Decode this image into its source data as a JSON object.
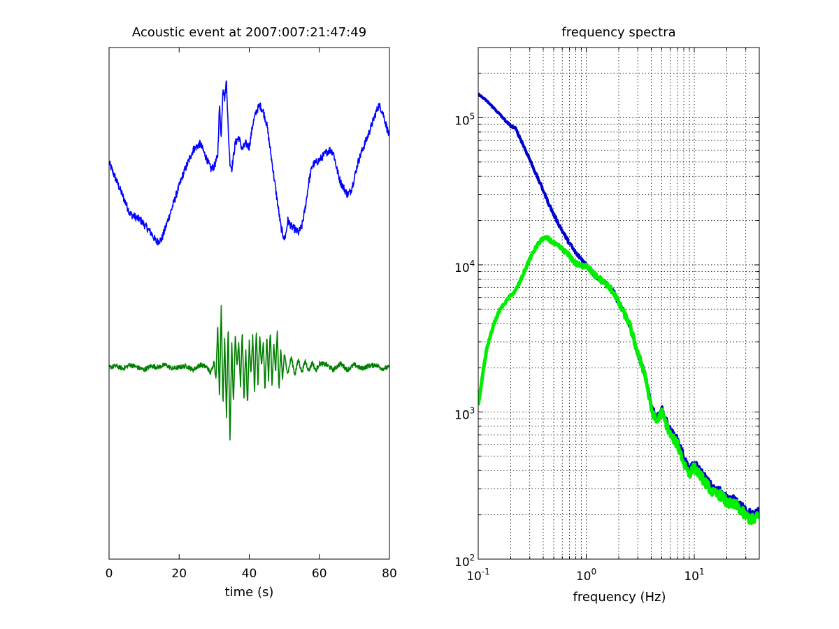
{
  "chart_data": [
    {
      "type": "line",
      "title": "Acoustic event at 2007:007:21:47:49",
      "xlabel": "time (s)",
      "ylabel": "",
      "xlim": [
        0,
        80
      ],
      "xticks": [
        0,
        20,
        40,
        60,
        80
      ],
      "ylim": [
        -1.5,
        2.5
      ],
      "yticks_shown": false,
      "grid": false,
      "series": [
        {
          "color": "#0000ff",
          "noise": 0.03,
          "x": [
            0,
            3,
            6,
            9,
            12,
            13.5,
            15,
            18,
            21,
            24,
            26,
            28,
            29,
            30,
            31,
            31.5,
            32,
            32.5,
            33,
            33.5,
            34,
            34.5,
            35,
            35.5,
            36,
            37,
            38,
            39,
            40,
            41,
            42,
            43,
            44,
            45,
            46,
            47,
            48,
            49,
            50,
            50.5,
            51,
            52,
            53,
            54,
            55,
            56,
            57,
            58,
            59,
            60,
            61,
            62,
            63,
            64,
            65,
            66,
            67,
            68,
            69,
            70,
            71,
            72,
            73,
            74,
            75,
            76,
            77,
            78,
            79,
            80
          ],
          "y": [
            1.6,
            1.4,
            1.2,
            1.15,
            1.05,
            0.98,
            1.0,
            1.25,
            1.5,
            1.7,
            1.75,
            1.62,
            1.55,
            1.57,
            1.65,
            2.05,
            1.8,
            2.2,
            2.1,
            2.25,
            1.85,
            1.6,
            1.55,
            1.65,
            1.75,
            1.8,
            1.7,
            1.75,
            1.72,
            1.9,
            2.0,
            2.05,
            2.0,
            1.9,
            1.7,
            1.5,
            1.3,
            1.1,
            1.0,
            1.05,
            1.15,
            1.1,
            1.08,
            1.05,
            1.1,
            1.25,
            1.45,
            1.58,
            1.6,
            1.62,
            1.65,
            1.68,
            1.7,
            1.68,
            1.55,
            1.45,
            1.4,
            1.35,
            1.38,
            1.48,
            1.6,
            1.68,
            1.75,
            1.82,
            1.9,
            1.98,
            2.05,
            2.0,
            1.9,
            1.8
          ]
        },
        {
          "color": "#007f00",
          "noise": 0.018,
          "x": [
            0,
            2,
            4,
            6,
            8,
            10,
            12,
            14,
            16,
            18,
            20,
            22,
            24,
            26,
            28,
            29,
            30,
            30.5,
            31,
            31.5,
            32,
            32.5,
            33,
            33.5,
            34,
            34.5,
            35,
            35.5,
            36,
            36.5,
            37,
            37.5,
            38,
            38.5,
            39,
            39.5,
            40,
            40.5,
            41,
            41.5,
            42,
            42.5,
            43,
            43.5,
            44,
            44.5,
            45,
            45.5,
            46,
            46.5,
            47,
            47.5,
            48,
            48.5,
            49,
            49.5,
            50,
            51,
            52,
            53,
            54,
            55,
            56,
            57,
            58,
            59,
            60,
            62,
            64,
            66,
            68,
            70,
            72,
            74,
            76,
            78,
            80
          ],
          "y": [
            0.0,
            0.01,
            -0.01,
            0.02,
            0.0,
            -0.02,
            0.01,
            0.0,
            0.02,
            -0.01,
            0.0,
            0.01,
            -0.02,
            0.02,
            0.0,
            -0.05,
            0.05,
            -0.1,
            0.35,
            -0.25,
            0.5,
            -0.3,
            0.25,
            -0.4,
            0.35,
            -0.6,
            0.2,
            -0.3,
            0.25,
            0.0,
            0.2,
            -0.15,
            0.3,
            -0.25,
            0.15,
            -0.3,
            0.2,
            -0.05,
            0.25,
            -0.2,
            0.3,
            -0.15,
            0.25,
            0.0,
            0.2,
            -0.2,
            0.25,
            -0.1,
            0.3,
            -0.15,
            0.2,
            -0.05,
            0.3,
            -0.2,
            0.15,
            -0.1,
            0.1,
            -0.05,
            0.08,
            -0.06,
            0.06,
            -0.04,
            0.05,
            -0.03,
            0.04,
            -0.03,
            0.03,
            0.02,
            -0.02,
            0.03,
            -0.02,
            0.02,
            -0.01,
            0.01,
            0.02,
            -0.01,
            0.0
          ]
        }
      ]
    },
    {
      "type": "line",
      "title": "frequency spectra",
      "xlabel": "frequency (Hz)",
      "ylabel": "",
      "xscale": "log",
      "yscale": "log",
      "xlim": [
        0.1,
        40
      ],
      "ylim": [
        100,
        300000
      ],
      "xticks": [
        {
          "value": 0.1,
          "base": "10",
          "exp": "-1"
        },
        {
          "value": 1,
          "base": "10",
          "exp": "0"
        },
        {
          "value": 10,
          "base": "10",
          "exp": "1"
        }
      ],
      "yticks": [
        {
          "value": 100,
          "base": "10",
          "exp": "2"
        },
        {
          "value": 1000,
          "base": "10",
          "exp": "3"
        },
        {
          "value": 10000,
          "base": "10",
          "exp": "4"
        },
        {
          "value": 100000,
          "base": "10",
          "exp": "5"
        }
      ],
      "grid": true,
      "series": [
        {
          "color": "#0000cc",
          "width": 4,
          "noise": 0.012,
          "x": [
            0.1,
            0.12,
            0.15,
            0.18,
            0.2,
            0.22,
            0.25,
            0.3,
            0.35,
            0.4,
            0.45,
            0.5,
            0.6,
            0.7,
            0.8,
            0.9,
            1.0,
            1.2,
            1.5,
            1.8,
            2.0,
            2.5,
            3.0,
            3.5,
            4.0,
            4.5,
            5.0,
            6.0,
            7.0,
            8.0,
            9.0,
            10.0,
            12.0,
            15.0,
            18.0,
            20.0,
            25.0,
            30.0,
            35.0,
            40.0
          ],
          "y": [
            145000,
            130000,
            110000,
            95000,
            88000,
            85000,
            70000,
            52000,
            40000,
            32000,
            26000,
            22000,
            17000,
            14000,
            12000,
            11000,
            10000,
            8500,
            7500,
            6500,
            5500,
            4000,
            2500,
            1800,
            1100,
            900,
            1050,
            750,
            650,
            500,
            400,
            450,
            380,
            300,
            290,
            260,
            250,
            210,
            200,
            210
          ]
        },
        {
          "color": "#00ee00",
          "width": 5,
          "noise": 0.015,
          "x": [
            0.1,
            0.11,
            0.12,
            0.14,
            0.16,
            0.18,
            0.2,
            0.22,
            0.25,
            0.3,
            0.35,
            0.4,
            0.45,
            0.5,
            0.6,
            0.7,
            0.8,
            0.9,
            1.0,
            1.2,
            1.5,
            1.8,
            2.0,
            2.5,
            3.0,
            3.5,
            4.0,
            4.5,
            5.0,
            6.0,
            7.0,
            8.0,
            9.0,
            10.0,
            12.0,
            15.0,
            18.0,
            20.0,
            25.0,
            30.0,
            35.0,
            40.0
          ],
          "y": [
            1100,
            1800,
            2700,
            4000,
            5000,
            5600,
            6200,
            6600,
            8000,
            11000,
            13500,
            15200,
            15000,
            14000,
            12800,
            11500,
            10200,
            9800,
            10000,
            8500,
            7500,
            6500,
            5500,
            4000,
            2500,
            1800,
            1050,
            850,
            1000,
            700,
            600,
            450,
            380,
            420,
            350,
            280,
            270,
            240,
            230,
            195,
            185,
            195
          ]
        }
      ]
    }
  ]
}
